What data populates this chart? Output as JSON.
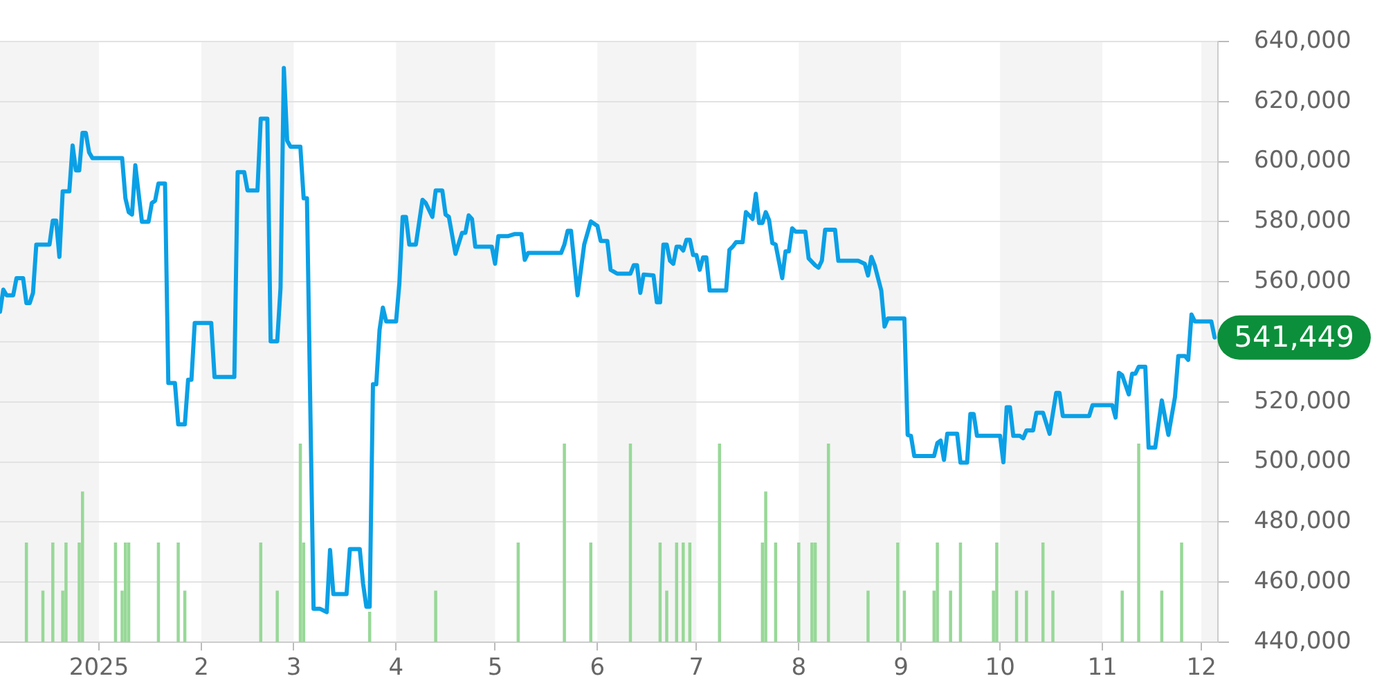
{
  "chart_data": {
    "type": "line",
    "xlim": [
      "2024-12-02",
      "2025-12-06"
    ],
    "xticks": [
      {
        "value": "2025-01-01",
        "label": "2025"
      },
      {
        "value": "2025-02-01",
        "label": "2"
      },
      {
        "value": "2025-03-01",
        "label": "3"
      },
      {
        "value": "2025-04-01",
        "label": "4"
      },
      {
        "value": "2025-05-01",
        "label": "5"
      },
      {
        "value": "2025-06-01",
        "label": "6"
      },
      {
        "value": "2025-07-01",
        "label": "7"
      },
      {
        "value": "2025-08-01",
        "label": "8"
      },
      {
        "value": "2025-09-01",
        "label": "9"
      },
      {
        "value": "2025-10-01",
        "label": "10"
      },
      {
        "value": "2025-11-01",
        "label": "11"
      },
      {
        "value": "2025-12-01",
        "label": "12"
      }
    ],
    "ylim": [
      440000,
      640000
    ],
    "yticks": [
      {
        "value": 440000,
        "label": "440,000"
      },
      {
        "value": 460000,
        "label": "460,000"
      },
      {
        "value": 480000,
        "label": "480,000"
      },
      {
        "value": 500000,
        "label": "500,000"
      },
      {
        "value": 520000,
        "label": "520,000"
      },
      {
        "value": 540000,
        "label": null
      },
      {
        "value": 560000,
        "label": "560,000"
      },
      {
        "value": 580000,
        "label": "580,000"
      },
      {
        "value": 600000,
        "label": "600,000"
      },
      {
        "value": 620000,
        "label": "620,000"
      },
      {
        "value": 640000,
        "label": "640,000"
      }
    ],
    "grid": "y",
    "bands": [
      {
        "axis": "x",
        "from": "2024-12-02",
        "to": "2025-01-01",
        "color": "#f4f4f4"
      },
      {
        "axis": "x",
        "from": "2025-02-01",
        "to": "2025-03-01",
        "color": "#f4f4f4"
      },
      {
        "axis": "x",
        "from": "2025-04-01",
        "to": "2025-05-01",
        "color": "#f4f4f4"
      },
      {
        "axis": "x",
        "from": "2025-06-01",
        "to": "2025-07-01",
        "color": "#f4f4f4"
      },
      {
        "axis": "x",
        "from": "2025-08-01",
        "to": "2025-09-01",
        "color": "#f4f4f4"
      },
      {
        "axis": "x",
        "from": "2025-10-01",
        "to": "2025-11-01",
        "color": "#f4f4f4"
      },
      {
        "axis": "x",
        "from": "2025-12-01",
        "to": "2025-12-06",
        "color": "#f4f4f4"
      }
    ],
    "annotations": [
      {
        "text": "541,449",
        "x": "2025-12-05",
        "y": 541449
      }
    ],
    "series": [
      {
        "color": "#0aa0e6",
        "x": [
          "2024-12-02",
          "2024-12-03",
          "2024-12-04",
          "2024-12-06",
          "2024-12-07",
          "2024-12-09",
          "2024-12-10",
          "2024-12-11",
          "2024-12-12",
          "2024-12-13",
          "2024-12-17",
          "2024-12-18",
          "2024-12-19",
          "2024-12-20",
          "2024-12-21",
          "2024-12-23",
          "2024-12-24",
          "2024-12-25",
          "2024-12-26",
          "2024-12-27",
          "2024-12-28",
          "2024-12-29",
          "2024-12-30",
          "2025-01-08",
          "2025-01-09",
          "2025-01-10",
          "2025-01-11",
          "2025-01-12",
          "2025-01-14",
          "2025-01-16",
          "2025-01-17",
          "2025-01-18",
          "2025-01-19",
          "2025-01-21",
          "2025-01-22",
          "2025-01-24",
          "2025-01-25",
          "2025-01-27",
          "2025-01-28",
          "2025-01-29",
          "2025-01-30",
          "2025-02-04",
          "2025-02-05",
          "2025-02-11",
          "2025-02-12",
          "2025-02-14",
          "2025-02-15",
          "2025-02-18",
          "2025-02-19",
          "2025-02-21",
          "2025-02-22",
          "2025-02-24",
          "2025-02-25",
          "2025-02-26",
          "2025-02-27",
          "2025-02-28",
          "2025-03-03",
          "2025-03-04",
          "2025-03-05",
          "2025-03-07",
          "2025-03-09",
          "2025-03-11",
          "2025-03-12",
          "2025-03-13",
          "2025-03-17",
          "2025-03-18",
          "2025-03-21",
          "2025-03-22",
          "2025-03-23",
          "2025-03-24",
          "2025-03-25",
          "2025-03-26",
          "2025-03-27",
          "2025-03-28",
          "2025-03-29",
          "2025-04-01",
          "2025-04-02",
          "2025-04-03",
          "2025-04-04",
          "2025-04-05",
          "2025-04-07",
          "2025-04-09",
          "2025-04-10",
          "2025-04-12",
          "2025-04-13",
          "2025-04-15",
          "2025-04-16",
          "2025-04-17",
          "2025-04-19",
          "2025-04-21",
          "2025-04-22",
          "2025-04-23",
          "2025-04-24",
          "2025-04-25",
          "2025-04-30",
          "2025-05-01",
          "2025-05-02",
          "2025-05-05",
          "2025-05-07",
          "2025-05-09",
          "2025-05-10",
          "2025-05-11",
          "2025-05-21",
          "2025-05-22",
          "2025-05-23",
          "2025-05-24",
          "2025-05-26",
          "2025-05-28",
          "2025-05-30",
          "2025-06-01",
          "2025-06-02",
          "2025-06-04",
          "2025-06-05",
          "2025-06-07",
          "2025-06-11",
          "2025-06-12",
          "2025-06-13",
          "2025-06-14",
          "2025-06-15",
          "2025-06-18",
          "2025-06-19",
          "2025-06-20",
          "2025-06-21",
          "2025-06-22",
          "2025-06-23",
          "2025-06-24",
          "2025-06-25",
          "2025-06-26",
          "2025-06-27",
          "2025-06-28",
          "2025-06-29",
          "2025-06-30",
          "2025-07-01",
          "2025-07-02",
          "2025-07-03",
          "2025-07-04",
          "2025-07-05",
          "2025-07-10",
          "2025-07-11",
          "2025-07-12",
          "2025-07-13",
          "2025-07-15",
          "2025-07-16",
          "2025-07-17",
          "2025-07-18",
          "2025-07-19",
          "2025-07-20",
          "2025-07-21",
          "2025-07-22",
          "2025-07-23",
          "2025-07-24",
          "2025-07-25",
          "2025-07-27",
          "2025-07-28",
          "2025-07-29",
          "2025-07-30",
          "2025-07-31",
          "2025-08-03",
          "2025-08-04",
          "2025-08-06",
          "2025-08-07",
          "2025-08-08",
          "2025-08-09",
          "2025-08-12",
          "2025-08-13",
          "2025-08-19",
          "2025-08-21",
          "2025-08-22",
          "2025-08-23",
          "2025-08-24",
          "2025-08-26",
          "2025-08-27",
          "2025-08-28",
          "2025-09-02",
          "2025-09-03",
          "2025-09-04",
          "2025-09-05",
          "2025-09-11",
          "2025-09-12",
          "2025-09-13",
          "2025-09-14",
          "2025-09-15",
          "2025-09-18",
          "2025-09-19",
          "2025-09-21",
          "2025-09-22",
          "2025-09-23",
          "2025-09-24",
          "2025-10-01",
          "2025-10-02",
          "2025-10-03",
          "2025-10-04",
          "2025-10-05",
          "2025-10-07",
          "2025-10-08",
          "2025-10-09",
          "2025-10-11",
          "2025-10-12",
          "2025-10-14",
          "2025-10-16",
          "2025-10-18",
          "2025-10-19",
          "2025-10-20",
          "2025-10-28",
          "2025-10-29",
          "2025-11-04",
          "2025-11-05",
          "2025-11-06",
          "2025-11-07",
          "2025-11-09",
          "2025-11-10",
          "2025-11-11",
          "2025-11-12",
          "2025-11-14",
          "2025-11-15",
          "2025-11-17",
          "2025-11-19",
          "2025-11-21",
          "2025-11-23",
          "2025-11-24",
          "2025-11-26",
          "2025-11-27",
          "2025-11-28",
          "2025-11-29",
          "2025-12-04",
          "2025-12-05"
        ],
        "values": [
          550000,
          557400,
          555500,
          555500,
          561200,
          561200,
          552900,
          552900,
          556300,
          572400,
          572400,
          580400,
          580400,
          568300,
          590100,
          590100,
          605400,
          597100,
          597100,
          609600,
          609600,
          603100,
          601200,
          601200,
          587800,
          583200,
          582400,
          598800,
          580000,
          580000,
          586200,
          587000,
          592700,
          592700,
          526300,
          526300,
          512500,
          512500,
          527400,
          527400,
          546300,
          546300,
          528300,
          528300,
          596500,
          596500,
          590400,
          590400,
          614300,
          614300,
          540200,
          540200,
          558100,
          631200,
          607000,
          605000,
          605000,
          587800,
          587800,
          451100,
          451100,
          450000,
          470700,
          456000,
          456000,
          471000,
          471000,
          459500,
          451800,
          451800,
          525900,
          525900,
          544000,
          551400,
          546800,
          546800,
          559400,
          581600,
          581600,
          572400,
          572400,
          587300,
          586200,
          581600,
          590400,
          590400,
          582400,
          581600,
          569300,
          576300,
          576300,
          582100,
          580900,
          571700,
          571700,
          566000,
          575200,
          575200,
          575900,
          575900,
          567300,
          569600,
          569600,
          572400,
          577000,
          577000,
          555500,
          572400,
          580100,
          578600,
          573600,
          573600,
          564000,
          562700,
          562700,
          565500,
          565500,
          556300,
          562400,
          562100,
          553200,
          553200,
          572400,
          572400,
          567000,
          566000,
          571700,
          571700,
          570400,
          574000,
          574000,
          568900,
          568900,
          564000,
          568100,
          568100,
          557100,
          557100,
          570600,
          571700,
          573200,
          573200,
          583200,
          582100,
          580900,
          589300,
          579600,
          579600,
          583200,
          580600,
          572900,
          572400,
          561200,
          570100,
          570100,
          577800,
          576700,
          576700,
          567800,
          565500,
          564700,
          567000,
          577300,
          577300,
          567000,
          567000,
          566000,
          562100,
          568300,
          565500,
          557100,
          545100,
          547800,
          547800,
          509000,
          508700,
          502000,
          502000,
          506300,
          507100,
          500700,
          509400,
          509400,
          499800,
          499800,
          516000,
          516000,
          508700,
          508700,
          499900,
          518200,
          518200,
          508700,
          508700,
          507900,
          510500,
          510500,
          516400,
          516400,
          509400,
          523000,
          523000,
          515300,
          515300,
          518900,
          518900,
          514800,
          529700,
          528900,
          522500,
          529400,
          529400,
          531700,
          531700,
          504800,
          504800,
          520500,
          509000,
          521700,
          535300,
          535300,
          534000,
          549100,
          546800,
          546800,
          541449
        ]
      },
      {
        "type": "bar",
        "color": "#98d898",
        "x": [
          "2024-12-10",
          "2024-12-15",
          "2024-12-18",
          "2024-12-21",
          "2024-12-22",
          "2024-12-26",
          "2024-12-27",
          "2025-01-06",
          "2025-01-08",
          "2025-01-09",
          "2025-01-10",
          "2025-01-19",
          "2025-01-25",
          "2025-01-27",
          "2025-02-19",
          "2025-02-24",
          "2025-03-03",
          "2025-03-04",
          "2025-03-24",
          "2025-04-13",
          "2025-05-08",
          "2025-05-22",
          "2025-05-30",
          "2025-06-11",
          "2025-06-20",
          "2025-06-22",
          "2025-06-25",
          "2025-06-27",
          "2025-06-29",
          "2025-07-08",
          "2025-07-21",
          "2025-07-22",
          "2025-07-25",
          "2025-08-01",
          "2025-08-05",
          "2025-08-06",
          "2025-08-10",
          "2025-08-22",
          "2025-08-31",
          "2025-09-02",
          "2025-09-11",
          "2025-09-12",
          "2025-09-16",
          "2025-09-19",
          "2025-09-29",
          "2025-09-30",
          "2025-10-06",
          "2025-10-09",
          "2025-10-14",
          "2025-10-17",
          "2025-11-07",
          "2025-11-12",
          "2025-11-19",
          "2025-11-25"
        ],
        "values": [
          473000,
          457000,
          473000,
          457000,
          473000,
          473000,
          490000,
          473000,
          457000,
          473000,
          473000,
          473000,
          473000,
          457000,
          473000,
          457000,
          506000,
          473000,
          450000,
          457000,
          473000,
          506000,
          473000,
          506000,
          473000,
          457000,
          473000,
          473000,
          473000,
          506000,
          473000,
          490000,
          473000,
          473000,
          473000,
          473000,
          506000,
          457000,
          473000,
          457000,
          457000,
          473000,
          457000,
          473000,
          457000,
          473000,
          457000,
          457000,
          473000,
          457000,
          457000,
          506000,
          457000,
          473000
        ]
      }
    ]
  }
}
